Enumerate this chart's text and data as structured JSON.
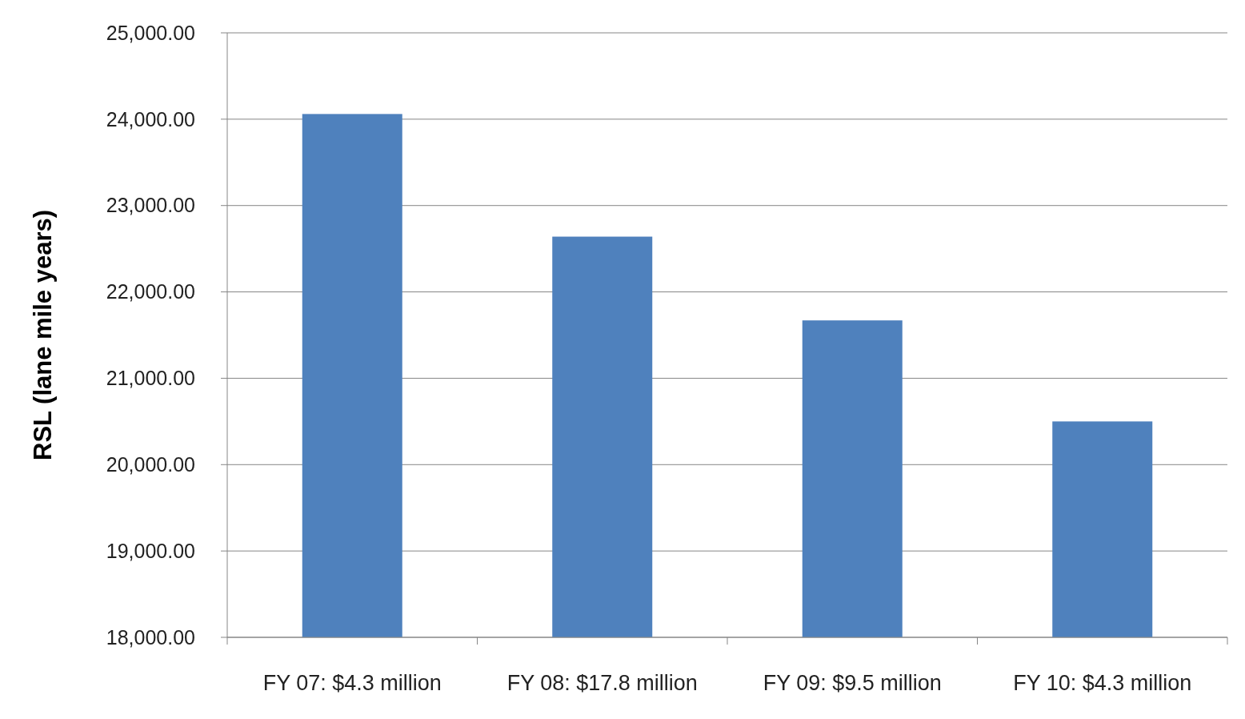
{
  "chart_data": {
    "type": "bar",
    "ylabel": "RSL (lane mile years)",
    "categories": [
      "FY 07: $4.3 million",
      "FY 08: $17.8 million",
      "FY 09: $9.5 million",
      "FY 10: $4.3 million"
    ],
    "values": [
      24060,
      22640,
      21670,
      20500
    ],
    "color": "#4f81bd",
    "ylim": [
      18000,
      25000
    ],
    "yticks": [
      {
        "value": 18000,
        "label": "18,000.00"
      },
      {
        "value": 19000,
        "label": "19,000.00"
      },
      {
        "value": 20000,
        "label": "20,000.00"
      },
      {
        "value": 21000,
        "label": "21,000.00"
      },
      {
        "value": 22000,
        "label": "22,000.00"
      },
      {
        "value": 23000,
        "label": "23,000.00"
      },
      {
        "value": 24000,
        "label": "24,000.00"
      },
      {
        "value": 25000,
        "label": "25,000.00"
      }
    ],
    "grid": "y"
  }
}
